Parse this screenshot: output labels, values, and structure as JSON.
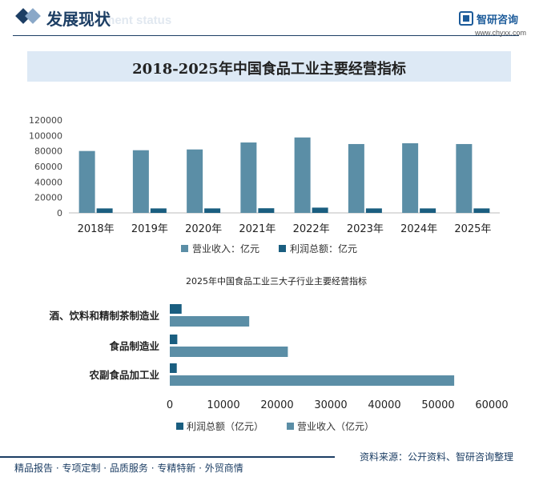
{
  "header": {
    "title": "发展现状",
    "subtitle_en": "ment status",
    "brand_name": "智研咨询",
    "brand_url": "www.chyxx.com"
  },
  "chart_data": [
    {
      "type": "bar",
      "title": "2018-2025年中国食品工业主要经营指标",
      "categories": [
        "2018年",
        "2019年",
        "2020年",
        "2021年",
        "2022年",
        "2023年",
        "2024年",
        "2025年"
      ],
      "series": [
        {
          "name": "营业收入：亿元",
          "color": "#5b8ea6",
          "values": [
            80000,
            81000,
            82000,
            91000,
            97500,
            89000,
            90000,
            89000
          ]
        },
        {
          "name": "利润总额：亿元",
          "color": "#1a5e80",
          "values": [
            5800,
            5800,
            5800,
            6000,
            6800,
            5800,
            5800,
            5800
          ]
        }
      ],
      "ylim": [
        0,
        120000
      ],
      "yticks": [
        "120000",
        "100000",
        "80000",
        "60000",
        "40000",
        "20000",
        "0"
      ],
      "legend": "bottom"
    },
    {
      "type": "bar",
      "orientation": "horizontal",
      "title": "2025年中国食品工业三大子行业主要经营指标",
      "categories": [
        "酒、饮料和精制茶制造业",
        "食品制造业",
        "农副食品加工业"
      ],
      "series": [
        {
          "name": "利润总额（亿元）",
          "color": "#1a5e80",
          "values": [
            2200,
            1400,
            1300
          ]
        },
        {
          "name": "营业收入（亿元）",
          "color": "#5b8ea6",
          "values": [
            14800,
            22000,
            53000
          ]
        }
      ],
      "xlim": [
        0,
        60000
      ],
      "xticks": [
        "0",
        "10000",
        "20000",
        "30000",
        "40000",
        "50000",
        "60000"
      ],
      "legend": "bottom"
    }
  ],
  "footer": {
    "left": "精品报告 · 专项定制 · 品质服务 · 专精特新 · 外贸商情",
    "source": "资料来源：公开资料、智研咨询整理"
  }
}
